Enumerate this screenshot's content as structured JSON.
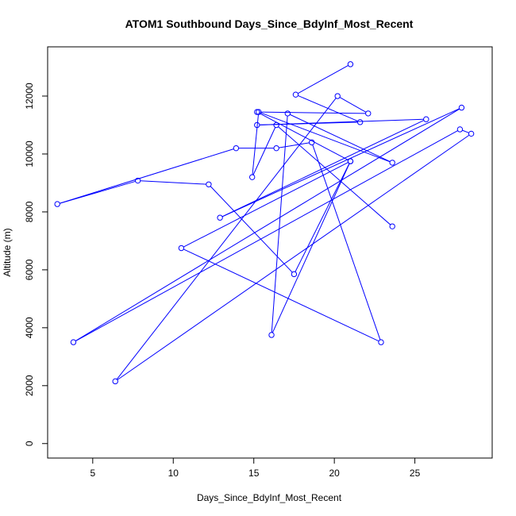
{
  "chart_data": {
    "type": "line",
    "title": "ATOM1 Southbound Days_Since_BdyInf_Most_Recent",
    "xlabel": "Days_Since_BdyInf_Most_Recent",
    "ylabel": "Altitude (m)",
    "xlim": [
      2.2,
      29.8
    ],
    "ylim": [
      -500,
      13700
    ],
    "xticks": [
      5,
      10,
      15,
      20,
      25
    ],
    "yticks": [
      0,
      2000,
      4000,
      6000,
      8000,
      10000,
      12000
    ],
    "grid": false,
    "legend": "none",
    "series": [
      {
        "color": "#0000ff",
        "marker": "open-circle",
        "x": [
          21.0,
          17.6,
          21.6,
          15.2,
          25.7,
          12.9,
          27.9,
          3.8,
          27.8,
          28.5,
          6.4,
          20.2,
          22.1,
          15.2,
          21.0,
          10.5,
          22.9,
          18.6,
          16.4,
          13.9,
          2.8,
          7.8,
          12.2,
          17.5,
          21.0,
          16.1,
          17.1,
          23.6,
          15.3,
          14.9,
          16.4,
          23.6
        ],
        "y": [
          13100,
          12050,
          11100,
          11000,
          11200,
          7800,
          11600,
          3500,
          10850,
          10700,
          2150,
          12000,
          11400,
          11450,
          9750,
          6750,
          3500,
          10400,
          10200,
          10200,
          8270,
          9080,
          8950,
          5850,
          9750,
          3750,
          11400,
          9700,
          11450,
          9200,
          11000,
          7500
        ]
      }
    ]
  }
}
